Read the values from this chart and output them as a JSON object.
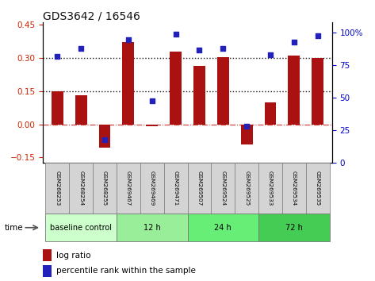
{
  "title": "GDS3642 / 16546",
  "samples": [
    "GSM268253",
    "GSM268254",
    "GSM268255",
    "GSM269467",
    "GSM269469",
    "GSM269471",
    "GSM269507",
    "GSM269524",
    "GSM269525",
    "GSM269533",
    "GSM269534",
    "GSM269535"
  ],
  "log_ratio": [
    0.148,
    0.13,
    -0.105,
    0.37,
    -0.01,
    0.33,
    0.265,
    0.305,
    -0.09,
    0.1,
    0.31,
    0.3
  ],
  "pct_rank": [
    82,
    88,
    18,
    95,
    48,
    99,
    87,
    88,
    28,
    83,
    93,
    98
  ],
  "ylim_left": [
    -0.175,
    0.46
  ],
  "ylim_right": [
    0,
    108.0
  ],
  "yticks_left": [
    -0.15,
    0,
    0.15,
    0.3,
    0.45
  ],
  "yticks_right": [
    0,
    25,
    50,
    75,
    100
  ],
  "hline_values": [
    0.15,
    0.3
  ],
  "groups": [
    {
      "label": "baseline control",
      "start": 0,
      "end": 3,
      "color": "#ccffcc"
    },
    {
      "label": "12 h",
      "start": 3,
      "end": 6,
      "color": "#99ee99"
    },
    {
      "label": "24 h",
      "start": 6,
      "end": 9,
      "color": "#66ee77"
    },
    {
      "label": "72 h",
      "start": 9,
      "end": 12,
      "color": "#44cc55"
    }
  ],
  "bar_color": "#aa1111",
  "dot_color": "#2222bb",
  "zero_line_color": "#cc3333",
  "hline_color": "#111111",
  "plot_bg": "#ffffff",
  "tick_color_left": "#cc2200",
  "tick_color_right": "#0000cc",
  "title_color": "#111111",
  "legend_bar_label": "log ratio",
  "legend_dot_label": "percentile rank within the sample",
  "xlabel_time": "time",
  "bar_width": 0.5,
  "sample_cell_color": "#d4d4d4",
  "sample_cell_edge": "#888888"
}
